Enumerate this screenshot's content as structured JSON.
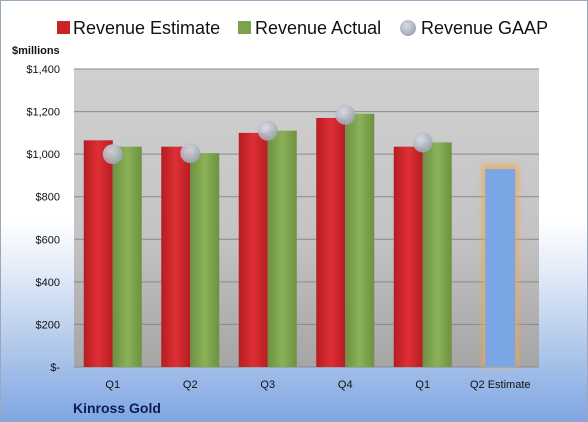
{
  "legend": {
    "estimate_label": "Revenue Estimate",
    "actual_label": "Revenue Actual",
    "gaap_label": "Revenue GAAP"
  },
  "unit_label": "$millions",
  "company_label": "Kinross Gold",
  "colors": {
    "estimate": "#cc2127",
    "actual": "#7ca24a",
    "gaap": "#aeb4c2",
    "forecast_fill": "#7aa6e6",
    "forecast_glow": "#f2a94c"
  },
  "chart_data": {
    "type": "bar",
    "categories": [
      "Q1",
      "Q2",
      "Q3",
      "Q4",
      "Q1",
      "Q2 Estimate"
    ],
    "y_ticks": [
      "$-",
      "$200",
      "$400",
      "$600",
      "$800",
      "$1,000",
      "$1,200",
      "$1,400"
    ],
    "ylim": [
      0,
      1400
    ],
    "grid": true,
    "legend_position": "top",
    "series": [
      {
        "name": "Revenue Estimate",
        "type": "bar",
        "values": [
          1065,
          1035,
          1100,
          1170,
          1035,
          930
        ]
      },
      {
        "name": "Revenue Actual",
        "type": "bar",
        "values": [
          1035,
          1005,
          1110,
          1190,
          1055,
          null
        ]
      },
      {
        "name": "Revenue GAAP",
        "type": "marker",
        "values": [
          1000,
          1005,
          1110,
          1185,
          1055,
          null
        ]
      }
    ]
  }
}
